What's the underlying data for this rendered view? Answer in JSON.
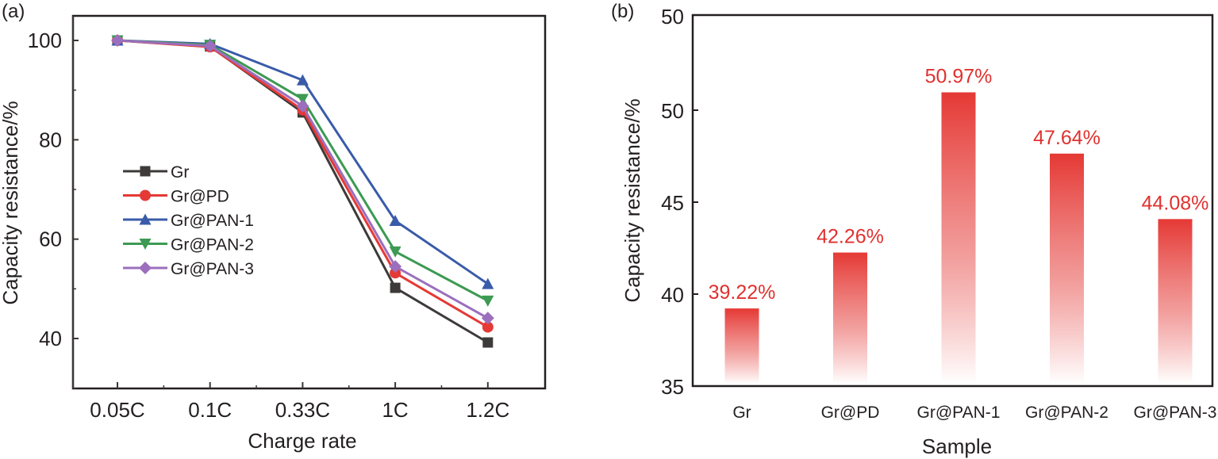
{
  "chart_data": [
    {
      "panel": "(a)",
      "type": "line",
      "title": "",
      "xlabel": "Charge rate",
      "ylabel": "Capacity resistance/%",
      "categories": [
        "0.05C",
        "0.1C",
        "0.33C",
        "1C",
        "1.2C"
      ],
      "ylim": [
        30,
        105
      ],
      "yticks": [
        40,
        60,
        80,
        100
      ],
      "grid": false,
      "legend": "center-left",
      "series": [
        {
          "name": "Gr",
          "color": "#3d3a39",
          "marker": "square",
          "values": [
            100,
            98.8,
            85.5,
            50.2,
            39.2
          ]
        },
        {
          "name": "Gr@PD",
          "color": "#e53935",
          "marker": "circle",
          "values": [
            100,
            98.7,
            86.0,
            53.2,
            42.3
          ]
        },
        {
          "name": "Gr@PAN-1",
          "color": "#3a5ba9",
          "marker": "triangle-up",
          "values": [
            100,
            99.3,
            92.0,
            63.7,
            51.0
          ]
        },
        {
          "name": "Gr@PAN-2",
          "color": "#3c9a52",
          "marker": "triangle-down",
          "values": [
            100,
            99.1,
            88.2,
            57.5,
            47.6
          ]
        },
        {
          "name": "Gr@PAN-3",
          "color": "#9b6fbd",
          "marker": "diamond",
          "values": [
            100,
            98.9,
            86.8,
            54.5,
            44.1
          ]
        }
      ]
    },
    {
      "panel": "(b)",
      "type": "bar",
      "title": "",
      "xlabel": "Sample",
      "ylabel": "Capacity resistance/%",
      "categories": [
        "Gr",
        "Gr@PD",
        "Gr@PAN-1",
        "Gr@PAN-2",
        "Gr@PAN-3"
      ],
      "values": [
        39.22,
        42.26,
        50.97,
        47.64,
        44.08
      ],
      "data_labels": [
        "39.22%",
        "42.26%",
        "50.97%",
        "47.64%",
        "44.08%"
      ],
      "ylim": [
        35,
        50
      ],
      "yticks": [
        35,
        40,
        45,
        50
      ],
      "ytick_labels": [
        "35",
        "40",
        "45",
        "50"
      ],
      "extra_top_label": "50",
      "grid": false,
      "bar_color": "#e53935",
      "label_color": "#e0312f"
    }
  ]
}
